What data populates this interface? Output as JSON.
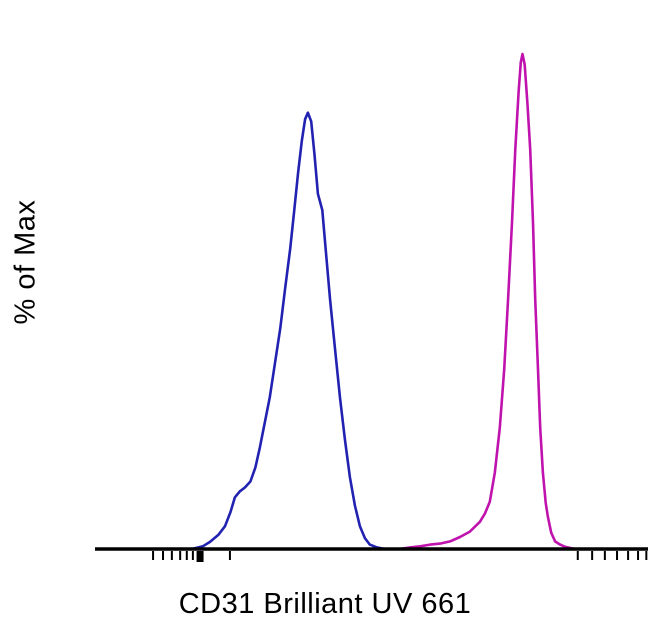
{
  "figure": {
    "background_color": "#ffffff",
    "text_color": "#000000"
  },
  "chart_data": {
    "type": "line",
    "subtype": "flow-cytometry-histogram",
    "title": "",
    "xlabel": "CD31 Brilliant UV 661",
    "ylabel": "% of Max",
    "x_scale": "log",
    "ylim": [
      0,
      100
    ],
    "grid": false,
    "legend": "none",
    "axis_color": "#000000",
    "axis_line_width": 3.5,
    "series": [
      {
        "name": "blue-peak",
        "color": "#2222b2",
        "peak_x_pct": 38.5,
        "peak_y_pct": 80,
        "points": [
          [
            17.5,
            0
          ],
          [
            19.5,
            0.5
          ],
          [
            20.8,
            1.3
          ],
          [
            22.3,
            2.6
          ],
          [
            23.5,
            4.2
          ],
          [
            24.5,
            6.8
          ],
          [
            25.3,
            9.5
          ],
          [
            26.2,
            10.6
          ],
          [
            27.1,
            11.3
          ],
          [
            28.1,
            12.4
          ],
          [
            29.0,
            15.0
          ],
          [
            29.8,
            18.6
          ],
          [
            31.6,
            27.8
          ],
          [
            33.5,
            40.6
          ],
          [
            34.4,
            48.0
          ],
          [
            35.3,
            55.2
          ],
          [
            36.0,
            62.0
          ],
          [
            36.7,
            69.0
          ],
          [
            37.4,
            75.0
          ],
          [
            38.0,
            79.0
          ],
          [
            38.5,
            80.2
          ],
          [
            39.1,
            78.6
          ],
          [
            39.7,
            72.5
          ],
          [
            40.3,
            65.3
          ],
          [
            41.1,
            62.3
          ],
          [
            41.8,
            54.0
          ],
          [
            42.5,
            46.0
          ],
          [
            43.4,
            36.8
          ],
          [
            44.3,
            27.8
          ],
          [
            45.2,
            20.0
          ],
          [
            46.1,
            13.2
          ],
          [
            47.0,
            8.0
          ],
          [
            47.9,
            4.2
          ],
          [
            48.8,
            2.0
          ],
          [
            49.7,
            0.8
          ],
          [
            51.0,
            0.3
          ],
          [
            52.4,
            0
          ]
        ]
      },
      {
        "name": "magenta-peak",
        "color": "#c013ae",
        "peak_x_pct": 77.3,
        "peak_y_pct": 91,
        "points": [
          [
            55.0,
            0
          ],
          [
            57.0,
            0.3
          ],
          [
            58.8,
            0.5
          ],
          [
            60.6,
            0.8
          ],
          [
            62.4,
            1.0
          ],
          [
            64.2,
            1.4
          ],
          [
            66.0,
            2.2
          ],
          [
            67.8,
            3.2
          ],
          [
            69.6,
            5.0
          ],
          [
            70.5,
            6.5
          ],
          [
            71.4,
            8.7
          ],
          [
            72.3,
            14.0
          ],
          [
            73.2,
            22.3
          ],
          [
            74.0,
            33.0
          ],
          [
            74.7,
            46.0
          ],
          [
            75.4,
            60.0
          ],
          [
            76.0,
            73.5
          ],
          [
            76.6,
            84.0
          ],
          [
            77.0,
            89.5
          ],
          [
            77.3,
            91.0
          ],
          [
            77.7,
            89.0
          ],
          [
            78.2,
            82.0
          ],
          [
            78.7,
            73.5
          ],
          [
            79.2,
            60.0
          ],
          [
            79.6,
            46.0
          ],
          [
            80.1,
            33.0
          ],
          [
            80.5,
            22.3
          ],
          [
            81.0,
            14.0
          ],
          [
            81.5,
            8.5
          ],
          [
            81.9,
            5.9
          ],
          [
            82.5,
            3.0
          ],
          [
            83.2,
            1.4
          ],
          [
            84.1,
            0.8
          ],
          [
            85.0,
            0.4
          ],
          [
            86.8,
            0
          ]
        ]
      }
    ],
    "x_axis": {
      "minor_ticks_pct": [
        10.5,
        12.3,
        13.9,
        15.4,
        16.6,
        17.7,
        24.4,
        87.3,
        89.9,
        92.2,
        94.4,
        96.4,
        98.2,
        99.7
      ],
      "major_ticks_pct": [
        19.0
      ],
      "tick_color": "#000000"
    }
  }
}
